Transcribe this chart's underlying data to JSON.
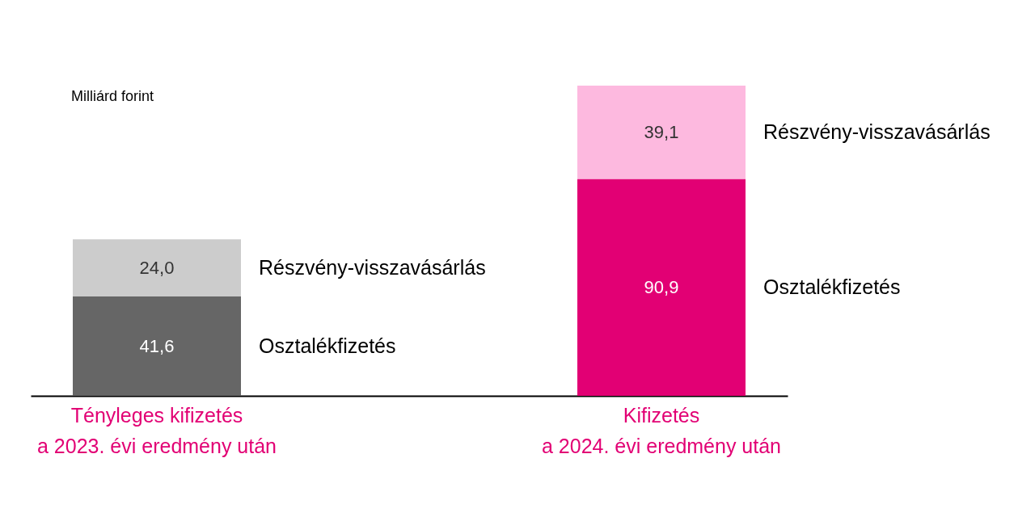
{
  "chart_data": {
    "type": "bar",
    "stacked": true,
    "ylabel": "Milliárd forint",
    "categories": [
      "Tényleges kifizetés\na 2023. évi eredmény után",
      "Kifizetés\na 2024. évi eredmény után"
    ],
    "series": [
      {
        "name": "Osztalékfizetés",
        "colors": [
          "#666666",
          "#e20074"
        ],
        "values": [
          41.6,
          90.9
        ],
        "value_labels": [
          "41,6",
          "90,9"
        ]
      },
      {
        "name": "Részvény-visszavásárlás",
        "colors": [
          "#cccccc",
          "#fdb9df"
        ],
        "values": [
          24.0,
          39.1
        ],
        "value_labels": [
          "24,0",
          "39,1"
        ]
      }
    ]
  }
}
